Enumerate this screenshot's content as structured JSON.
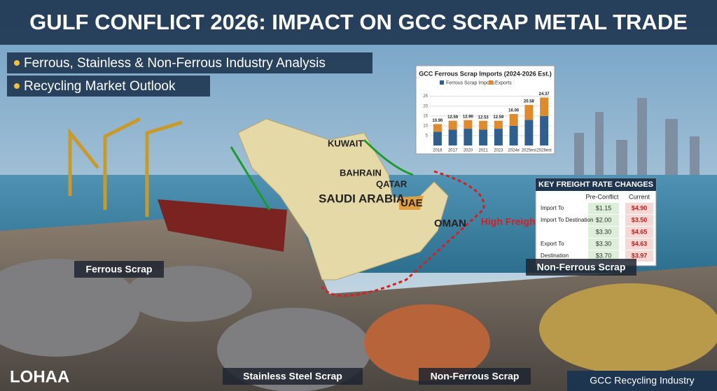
{
  "header": {
    "title": "GULF CONFLICT 2026: IMPACT ON GCC SCRAP METAL TRADE",
    "bullets": [
      "Ferrous, Stainless & Non-Ferrous Industry Analysis",
      "Recycling Market Outlook"
    ]
  },
  "map": {
    "labels": [
      "KUWAIT",
      "BAHRAIN",
      "QATAR",
      "SAUDI ARABIA",
      "UAE",
      "OMAN"
    ],
    "alert": "High Freight"
  },
  "inset_chart": {
    "type": "bar",
    "title": "GCC Ferrous Scrap Imports (2024-2026 Est.)",
    "categories": [
      "2016",
      "2017",
      "2020",
      "2021",
      "2023",
      "2024e",
      "2025est",
      "2026est"
    ],
    "series": [
      {
        "name": "Ferrous Scrap Imports",
        "color": "#2f5f8f",
        "values": [
          7,
          8,
          8.5,
          8,
          8.5,
          10,
          13,
          15
        ]
      },
      {
        "name": "Exports",
        "color": "#e08a2e",
        "values": [
          3.9,
          4.59,
          4.4,
          4.53,
          4.09,
          6,
          7.58,
          9.37
        ]
      }
    ],
    "totals": [
      "10.90",
      "12.59",
      "12.90",
      "12.53",
      "12.59",
      "16.00",
      "20.58",
      "24.37"
    ],
    "ylim": [
      0,
      27
    ],
    "yticks": [
      5,
      10,
      15,
      20,
      25
    ],
    "grid": true
  },
  "freight_table": {
    "title": "KEY FREIGHT RATE CHANGES",
    "columns": [
      "Pre-Conflict",
      "Current"
    ],
    "rows": [
      {
        "label": "Import To",
        "pre": "$1.15",
        "current": "$4.90"
      },
      {
        "label": "Import To Destination",
        "pre": "$2.00",
        "current": "$3.50"
      },
      {
        "pre": "$3.30",
        "current": "$4.65"
      },
      {
        "label": "Export To",
        "pre": "$3.30",
        "current": "$4.63"
      },
      {
        "label": "Destination",
        "pre": "$3.70",
        "current": "$3.97"
      }
    ]
  },
  "scrap_labels": [
    "Ferrous Scrap",
    "Non-Ferrous Scrap",
    "Stainless Steel Scrap",
    "Non-Ferrous Scrap"
  ],
  "footer": {
    "brand": "LOHAA",
    "tag": "GCC Recycling Industry"
  }
}
